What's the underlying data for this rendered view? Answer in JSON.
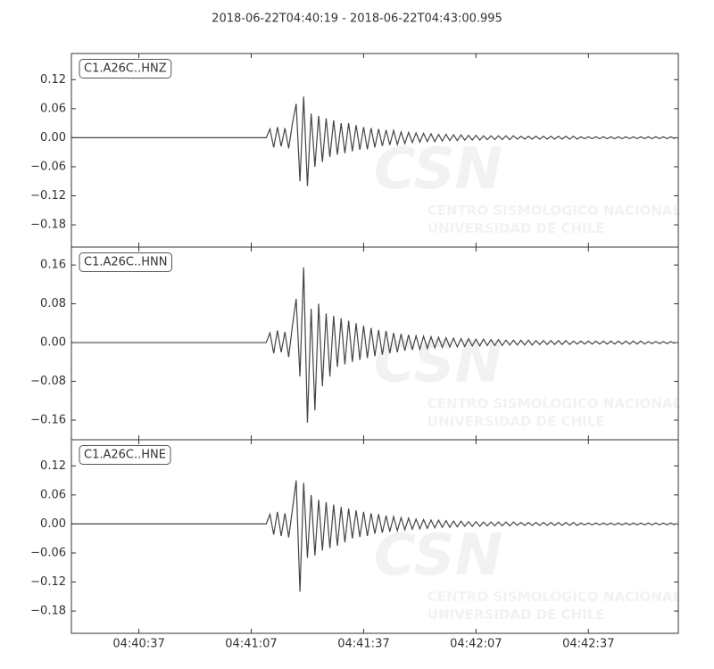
{
  "chart_data": [
    {
      "type": "line",
      "title": "2018-06-22T04:40:19  -  2018-06-22T04:43:00.995",
      "watermark": {
        "logo": "CSN",
        "text": "CENTRO SISMOLOGICO NACIONAL",
        "subtext": "UNIVERSIDAD DE CHILE"
      },
      "x": [
        0,
        52,
        53,
        54,
        55,
        56,
        57,
        58,
        59,
        60,
        61,
        62,
        63,
        64,
        65,
        66,
        67,
        68,
        69,
        70,
        71,
        72,
        73,
        74,
        75,
        76,
        77,
        78,
        79,
        80,
        81,
        82,
        83,
        84,
        85,
        86,
        87,
        88,
        89,
        90,
        91,
        92,
        93,
        94,
        95,
        96,
        97,
        98,
        99,
        100,
        101,
        102,
        103,
        104,
        105,
        106,
        107,
        108,
        109,
        110,
        111,
        112,
        113,
        114,
        115,
        116,
        117,
        118,
        119,
        120,
        121,
        122,
        123,
        124,
        125,
        126,
        127,
        128,
        129,
        130,
        131,
        132,
        133,
        134,
        135,
        136,
        137,
        138,
        139,
        140,
        141,
        142,
        143,
        144,
        145,
        146,
        147,
        148,
        149,
        150,
        151,
        152,
        153,
        154,
        155,
        156,
        157,
        158,
        159,
        160,
        161
      ],
      "series": [
        {
          "name": "C1.A26C..HNZ",
          "color": "#444444",
          "values": [
            0,
            0,
            0.018,
            -0.02,
            0.022,
            -0.018,
            0.02,
            -0.022,
            0.03,
            0.07,
            -0.09,
            0.085,
            -0.1,
            0.05,
            -0.06,
            0.045,
            -0.05,
            0.04,
            -0.04,
            0.036,
            -0.035,
            0.03,
            -0.032,
            0.03,
            -0.028,
            0.026,
            -0.025,
            0.022,
            -0.024,
            0.02,
            -0.02,
            0.018,
            -0.017,
            0.016,
            -0.015,
            0.015,
            -0.014,
            0.012,
            -0.012,
            0.011,
            -0.01,
            0.01,
            -0.009,
            0.009,
            -0.008,
            0.008,
            -0.008,
            0.007,
            -0.007,
            0.007,
            -0.006,
            0.006,
            -0.006,
            0.006,
            -0.005,
            0.005,
            -0.005,
            0.005,
            -0.005,
            0.004,
            -0.004,
            0.004,
            -0.004,
            0.004,
            -0.004,
            0.004,
            -0.004,
            0.004,
            -0.003,
            0.003,
            -0.003,
            0.003,
            -0.003,
            0.003,
            -0.003,
            0.003,
            -0.003,
            0.003,
            -0.003,
            0.003,
            -0.003,
            0.003,
            -0.003,
            0.003,
            -0.003,
            0.002,
            -0.002,
            0.002,
            -0.002,
            0.002,
            -0.002,
            0.002,
            -0.002,
            0.002,
            -0.002,
            0.002,
            -0.002,
            0.002,
            -0.002,
            0.002,
            -0.002,
            0.002,
            -0.002,
            0.002,
            -0.002,
            0.002,
            -0.002,
            0.002,
            -0.002,
            0.002,
            -0.002
          ]
        }
      ],
      "xlim": [
        0,
        161.995
      ],
      "ylim": [
        -0.226,
        0.174
      ],
      "yticks": [
        0.12,
        0.06,
        {
          "value": 0,
          "label": "0.00"
        },
        {
          "value": -0.06,
          "label": "−0.06"
        },
        {
          "value": -0.12,
          "label": "−0.12"
        },
        {
          "value": -0.18,
          "label": "−0.18"
        }
      ]
    },
    {
      "type": "line",
      "x": [
        0,
        52,
        53,
        54,
        55,
        56,
        57,
        58,
        59,
        60,
        61,
        62,
        63,
        64,
        65,
        66,
        67,
        68,
        69,
        70,
        71,
        72,
        73,
        74,
        75,
        76,
        77,
        78,
        79,
        80,
        81,
        82,
        83,
        84,
        85,
        86,
        87,
        88,
        89,
        90,
        91,
        92,
        93,
        94,
        95,
        96,
        97,
        98,
        99,
        100,
        101,
        102,
        103,
        104,
        105,
        106,
        107,
        108,
        109,
        110,
        111,
        112,
        113,
        114,
        115,
        116,
        117,
        118,
        119,
        120,
        121,
        122,
        123,
        124,
        125,
        126,
        127,
        128,
        129,
        130,
        131,
        132,
        133,
        134,
        135,
        136,
        137,
        138,
        139,
        140,
        141,
        142,
        143,
        144,
        145,
        146,
        147,
        148,
        149,
        150,
        151,
        152,
        153,
        154,
        155,
        156,
        157,
        158,
        159,
        160,
        161
      ],
      "series": [
        {
          "name": "C1.A26C..HNN",
          "color": "#444444",
          "values": [
            0,
            0,
            0.02,
            -0.022,
            0.025,
            -0.02,
            0.022,
            -0.03,
            0.035,
            0.09,
            -0.07,
            0.155,
            -0.165,
            0.07,
            -0.14,
            0.08,
            -0.09,
            0.06,
            -0.07,
            0.055,
            -0.05,
            0.05,
            -0.045,
            0.045,
            -0.04,
            0.04,
            -0.036,
            0.035,
            -0.032,
            0.03,
            -0.028,
            0.026,
            -0.025,
            0.024,
            -0.022,
            0.02,
            -0.02,
            0.018,
            -0.017,
            0.016,
            -0.015,
            0.014,
            -0.014,
            0.013,
            -0.012,
            0.012,
            -0.011,
            0.011,
            -0.01,
            0.01,
            -0.009,
            0.009,
            -0.009,
            0.008,
            -0.008,
            0.008,
            -0.007,
            0.007,
            -0.007,
            0.007,
            -0.006,
            0.006,
            -0.006,
            0.006,
            -0.006,
            0.005,
            -0.005,
            0.005,
            -0.005,
            0.005,
            -0.005,
            0.005,
            -0.005,
            0.004,
            -0.004,
            0.004,
            -0.004,
            0.004,
            -0.004,
            0.004,
            -0.004,
            0.004,
            -0.004,
            0.003,
            -0.003,
            0.003,
            -0.003,
            0.003,
            -0.003,
            0.003,
            -0.003,
            0.003,
            -0.003,
            0.003,
            -0.003,
            0.003,
            -0.003,
            0.003,
            -0.003,
            0.003,
            -0.003,
            0.003,
            -0.003,
            0.002,
            -0.002,
            0.002,
            -0.002,
            0.002,
            -0.002,
            0.002,
            -0.002
          ]
        }
      ],
      "xlim": [
        0,
        161.995
      ],
      "ylim": [
        -0.2005,
        0.197
      ],
      "yticks": [
        0.16,
        0.08,
        {
          "value": 0,
          "label": "0.00"
        },
        {
          "value": -0.08,
          "label": "−0.08"
        },
        {
          "value": -0.16,
          "label": "−0.16"
        }
      ]
    },
    {
      "type": "line",
      "x": [
        0,
        52,
        53,
        54,
        55,
        56,
        57,
        58,
        59,
        60,
        61,
        62,
        63,
        64,
        65,
        66,
        67,
        68,
        69,
        70,
        71,
        72,
        73,
        74,
        75,
        76,
        77,
        78,
        79,
        80,
        81,
        82,
        83,
        84,
        85,
        86,
        87,
        88,
        89,
        90,
        91,
        92,
        93,
        94,
        95,
        96,
        97,
        98,
        99,
        100,
        101,
        102,
        103,
        104,
        105,
        106,
        107,
        108,
        109,
        110,
        111,
        112,
        113,
        114,
        115,
        116,
        117,
        118,
        119,
        120,
        121,
        122,
        123,
        124,
        125,
        126,
        127,
        128,
        129,
        130,
        131,
        132,
        133,
        134,
        135,
        136,
        137,
        138,
        139,
        140,
        141,
        142,
        143,
        144,
        145,
        146,
        147,
        148,
        149,
        150,
        151,
        152,
        153,
        154,
        155,
        156,
        157,
        158,
        159,
        160,
        161
      ],
      "series": [
        {
          "name": "C1.A26C..HNE",
          "color": "#444444",
          "values": [
            0,
            0,
            0.02,
            -0.022,
            0.025,
            -0.025,
            0.022,
            -0.028,
            0.03,
            0.09,
            -0.14,
            0.085,
            -0.07,
            0.06,
            -0.065,
            0.05,
            -0.055,
            0.045,
            -0.05,
            0.04,
            -0.045,
            0.035,
            -0.038,
            0.032,
            -0.03,
            0.028,
            -0.027,
            0.025,
            -0.025,
            0.022,
            -0.02,
            0.02,
            -0.018,
            0.017,
            -0.016,
            0.015,
            -0.014,
            0.013,
            -0.012,
            0.012,
            -0.011,
            0.01,
            -0.01,
            0.009,
            -0.009,
            0.008,
            -0.008,
            0.008,
            -0.007,
            0.007,
            -0.007,
            0.006,
            -0.006,
            0.006,
            -0.005,
            0.005,
            -0.005,
            0.005,
            -0.005,
            0.004,
            -0.004,
            0.004,
            -0.004,
            0.004,
            -0.004,
            0.004,
            -0.004,
            0.004,
            -0.003,
            0.003,
            -0.003,
            0.003,
            -0.003,
            0.003,
            -0.003,
            0.003,
            -0.003,
            0.003,
            -0.003,
            0.003,
            -0.003,
            0.003,
            -0.003,
            0.003,
            -0.003,
            0.002,
            -0.002,
            0.002,
            -0.002,
            0.002,
            -0.002,
            0.002,
            -0.002,
            0.002,
            -0.002,
            0.002,
            -0.002,
            0.002,
            -0.002,
            0.002,
            -0.002,
            0.002,
            -0.002,
            0.002,
            -0.002,
            0.002,
            -0.002,
            0.002,
            -0.002,
            0.002,
            -0.002
          ]
        }
      ],
      "xlim": [
        0,
        161.995
      ],
      "ylim": [
        -0.226,
        0.174
      ],
      "yticks": [
        0.12,
        0.06,
        {
          "value": 0,
          "label": "0.00"
        },
        {
          "value": -0.06,
          "label": "−0.06"
        },
        {
          "value": -0.12,
          "label": "−0.12"
        },
        {
          "value": -0.18,
          "label": "−0.18"
        }
      ],
      "xticks": [
        {
          "value": 18,
          "label": "04:40:37"
        },
        {
          "value": 48,
          "label": "04:41:07"
        },
        {
          "value": 78,
          "label": "04:41:37"
        },
        {
          "value": 108,
          "label": "04:42:07"
        },
        {
          "value": 138,
          "label": "04:42:37"
        }
      ]
    }
  ]
}
